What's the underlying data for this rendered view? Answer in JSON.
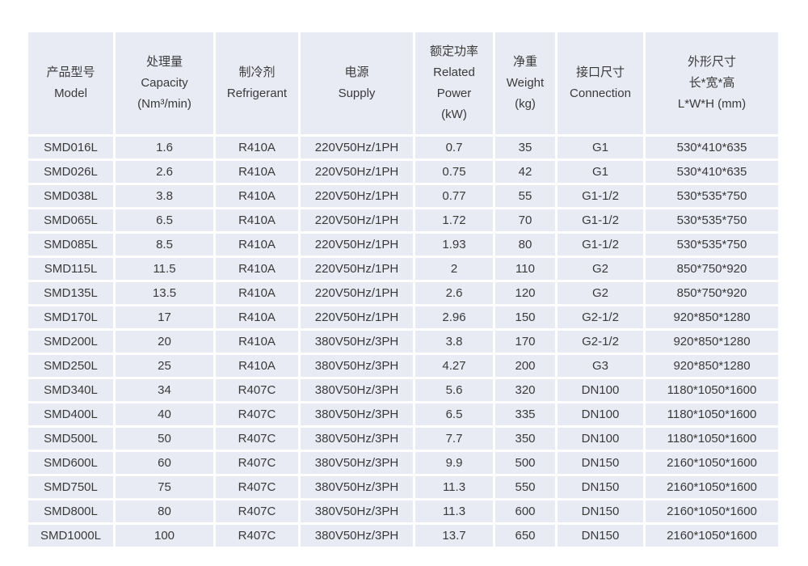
{
  "colors": {
    "cell_bg": "#e9ebf4",
    "text": "#3a3a3a",
    "page_bg": "#ffffff"
  },
  "table": {
    "columns": [
      {
        "id": "model",
        "lines": [
          "产品型号",
          "Model"
        ]
      },
      {
        "id": "capacity",
        "lines": [
          "处理量",
          "Capacity",
          "(Nm³/min)"
        ]
      },
      {
        "id": "refrigerant",
        "lines": [
          "制冷剂",
          "Refrigerant"
        ]
      },
      {
        "id": "supply",
        "lines": [
          "电源",
          "Supply"
        ]
      },
      {
        "id": "related-power",
        "lines": [
          "额定功率",
          "Related",
          "Power",
          "(kW)"
        ]
      },
      {
        "id": "weight",
        "lines": [
          "净重",
          "Weight",
          "(kg)"
        ]
      },
      {
        "id": "connection",
        "lines": [
          "接口尺寸",
          "Connection"
        ]
      },
      {
        "id": "dimensions",
        "lines": [
          "外形尺寸",
          "长*宽*高",
          "L*W*H (mm)"
        ]
      }
    ],
    "rows": [
      [
        "SMD016L",
        "1.6",
        "R410A",
        "220V50Hz/1PH",
        "0.7",
        "35",
        "G1",
        "530*410*635"
      ],
      [
        "SMD026L",
        "2.6",
        "R410A",
        "220V50Hz/1PH",
        "0.75",
        "42",
        "G1",
        "530*410*635"
      ],
      [
        "SMD038L",
        "3.8",
        "R410A",
        "220V50Hz/1PH",
        "0.77",
        "55",
        "G1-1/2",
        "530*535*750"
      ],
      [
        "SMD065L",
        "6.5",
        "R410A",
        "220V50Hz/1PH",
        "1.72",
        "70",
        "G1-1/2",
        "530*535*750"
      ],
      [
        "SMD085L",
        "8.5",
        "R410A",
        "220V50Hz/1PH",
        "1.93",
        "80",
        "G1-1/2",
        "530*535*750"
      ],
      [
        "SMD115L",
        "11.5",
        "R410A",
        "220V50Hz/1PH",
        "2",
        "110",
        "G2",
        "850*750*920"
      ],
      [
        "SMD135L",
        "13.5",
        "R410A",
        "220V50Hz/1PH",
        "2.6",
        "120",
        "G2",
        "850*750*920"
      ],
      [
        "SMD170L",
        "17",
        "R410A",
        "220V50Hz/1PH",
        "2.96",
        "150",
        "G2-1/2",
        "920*850*1280"
      ],
      [
        "SMD200L",
        "20",
        "R410A",
        "380V50Hz/3PH",
        "3.8",
        "170",
        "G2-1/2",
        "920*850*1280"
      ],
      [
        "SMD250L",
        "25",
        "R410A",
        "380V50Hz/3PH",
        "4.27",
        "200",
        "G3",
        "920*850*1280"
      ],
      [
        "SMD340L",
        "34",
        "R407C",
        "380V50Hz/3PH",
        "5.6",
        "320",
        "DN100",
        "1180*1050*1600"
      ],
      [
        "SMD400L",
        "40",
        "R407C",
        "380V50Hz/3PH",
        "6.5",
        "335",
        "DN100",
        "1180*1050*1600"
      ],
      [
        "SMD500L",
        "50",
        "R407C",
        "380V50Hz/3PH",
        "7.7",
        "350",
        "DN100",
        "1180*1050*1600"
      ],
      [
        "SMD600L",
        "60",
        "R407C",
        "380V50Hz/3PH",
        "9.9",
        "500",
        "DN150",
        "2160*1050*1600"
      ],
      [
        "SMD750L",
        "75",
        "R407C",
        "380V50Hz/3PH",
        "11.3",
        "550",
        "DN150",
        "2160*1050*1600"
      ],
      [
        "SMD800L",
        "80",
        "R407C",
        "380V50Hz/3PH",
        "11.3",
        "600",
        "DN150",
        "2160*1050*1600"
      ],
      [
        "SMD1000L",
        "100",
        "R407C",
        "380V50Hz/3PH",
        "13.7",
        "650",
        "DN150",
        "2160*1050*1600"
      ]
    ]
  }
}
